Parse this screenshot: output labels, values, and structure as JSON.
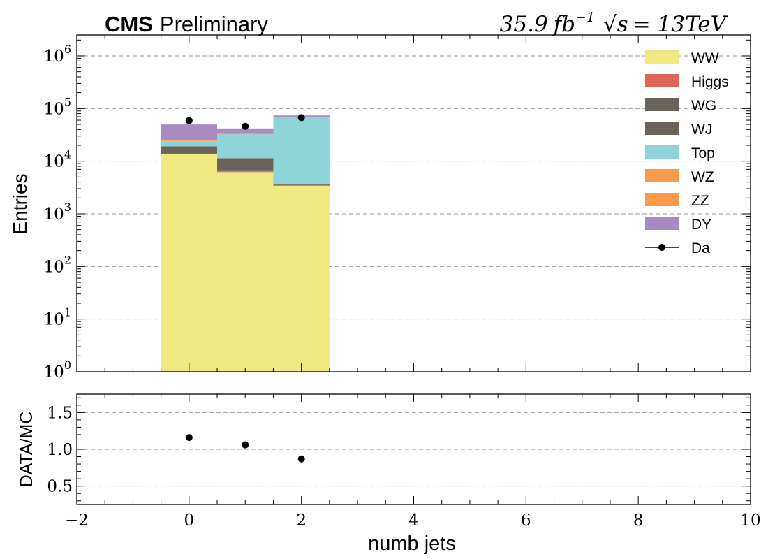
{
  "header": {
    "experiment": "CMS",
    "status": "Preliminary",
    "lumi": "35.9",
    "lumi_unit": "fb",
    "lumi_exp": "−1",
    "energy_lhs": "√s",
    "energy_rhs": "= 13TeV"
  },
  "chart_data": [
    {
      "type": "bar",
      "stacked": true,
      "scale": "log",
      "xlabel": "",
      "ylabel": "Entries",
      "xlim": [
        -2,
        10
      ],
      "ylim": [
        1,
        2500000
      ],
      "y_tick_base": "10",
      "y_tick_exponents": [
        "0",
        "1",
        "2",
        "3",
        "4",
        "5",
        "6"
      ],
      "grid": "horizontal-dashed",
      "legend_position": "top-right",
      "bin_edges": [
        -0.5,
        0.5,
        1.5,
        2.5
      ],
      "series": [
        {
          "name": "WW",
          "color": "#f0e982",
          "values": [
            13500,
            6200,
            3400
          ]
        },
        {
          "name": "Higgs",
          "color": "#dd6555",
          "values": [
            300,
            200,
            80
          ]
        },
        {
          "name": "WG",
          "color": "#6b625a",
          "values": [
            300,
            200,
            50
          ]
        },
        {
          "name": "WJ",
          "color": "#6b625a",
          "values": [
            5000,
            4800,
            150
          ]
        },
        {
          "name": "Top",
          "color": "#8dd3d7",
          "values": [
            5000,
            21000,
            64000
          ]
        },
        {
          "name": "WZ",
          "color": "#f99a4c",
          "values": [
            400,
            300,
            100
          ]
        },
        {
          "name": "ZZ",
          "color": "#f99a4c",
          "values": [
            300,
            200,
            80
          ]
        },
        {
          "name": "DY",
          "color": "#a98ac1",
          "values": [
            25000,
            9000,
            6000
          ]
        }
      ],
      "data_points": {
        "name": "Da",
        "color": "#000000",
        "x": [
          0,
          1,
          2
        ],
        "y": [
          59000,
          46000,
          67000
        ]
      }
    },
    {
      "type": "scatter",
      "xlabel": "numb jets",
      "ylabel": "DATA/MC",
      "xlim": [
        -2,
        10
      ],
      "ylim": [
        0.25,
        1.75
      ],
      "x_ticks": [
        "−2",
        "0",
        "2",
        "4",
        "6",
        "8",
        "10"
      ],
      "y_ticks": [
        "0.5",
        "1.0",
        "1.5"
      ],
      "grid": "horizontal-dashed",
      "x": [
        0,
        1,
        2
      ],
      "y": [
        1.16,
        1.06,
        0.87
      ]
    }
  ]
}
